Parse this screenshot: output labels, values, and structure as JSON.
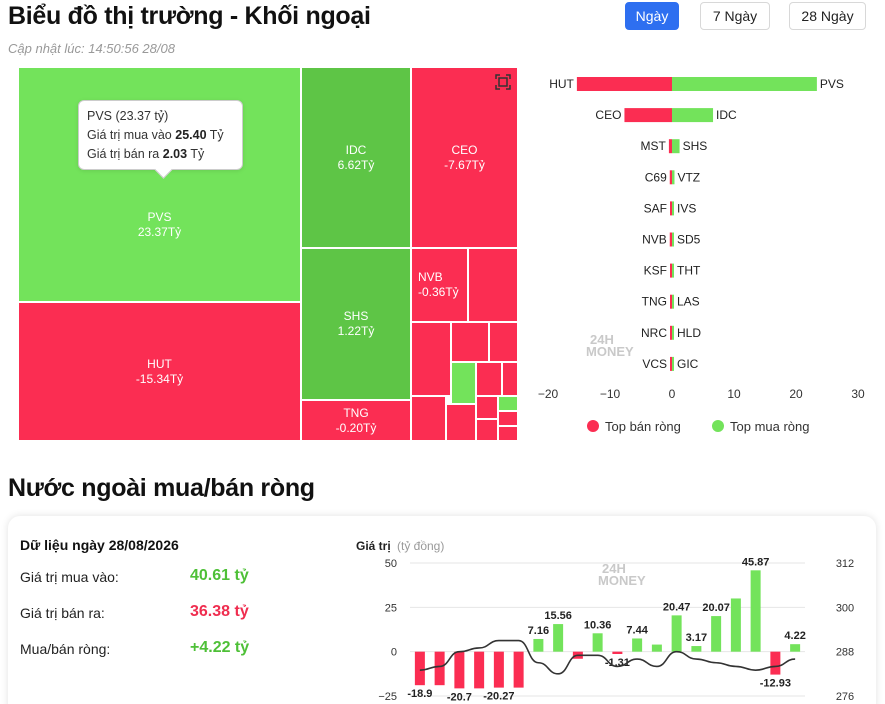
{
  "header": {
    "title": "Biểu đồ thị trường - Khối ngoại",
    "updated": "Cập nhật lúc: 14:50:56 28/08",
    "tabs": [
      {
        "label": "Ngày",
        "active": true
      },
      {
        "label": "7 Ngày",
        "active": false
      },
      {
        "label": "28 Ngày",
        "active": false
      }
    ]
  },
  "treemap": {
    "tiles": [
      {
        "symbol": "PVS",
        "value": "23.37Tỷ",
        "sign": "pos"
      },
      {
        "symbol": "HUT",
        "value": "-15.34Tỷ",
        "sign": "neg"
      },
      {
        "symbol": "IDC",
        "value": "6.62Tỷ",
        "sign": "pos"
      },
      {
        "symbol": "CEO",
        "value": "-7.67Tỷ",
        "sign": "neg"
      },
      {
        "symbol": "SHS",
        "value": "1.22Tỷ",
        "sign": "pos"
      },
      {
        "symbol": "NVB",
        "value": "-0.36Tỷ",
        "sign": "neg"
      },
      {
        "symbol": "TNG",
        "value": "-0.20Tỷ",
        "sign": "neg"
      }
    ],
    "tooltip": {
      "title": "PVS (23.37 tỷ)",
      "buy_label": "Giá trị mua vào",
      "buy_value": "25.40",
      "sell_label": "Giá trị bán ra",
      "sell_value": "2.03",
      "unit": "Tỷ"
    },
    "icon": "expand-icon"
  },
  "colors": {
    "positive": "#73e35b",
    "negative": "#fb2d52",
    "accent": "#2e6ff0"
  },
  "chart_data": [
    {
      "type": "bar",
      "orientation": "horizontal",
      "sell_symbols": [
        "HUT",
        "CEO",
        "MST",
        "C69",
        "SAF",
        "NVB",
        "KSF",
        "TNG",
        "NRC",
        "VCS"
      ],
      "sell_values": [
        -15.34,
        -7.67,
        -0.5,
        -0.36,
        -0.3,
        -0.36,
        -0.25,
        -0.2,
        -0.15,
        -0.1
      ],
      "buy_symbols": [
        "PVS",
        "IDC",
        "SHS",
        "VTZ",
        "IVS",
        "SD5",
        "THT",
        "LAS",
        "HLD",
        "GIC"
      ],
      "buy_values": [
        23.37,
        6.62,
        1.22,
        0.4,
        0.3,
        0.25,
        0.2,
        0.15,
        0.1,
        0.05
      ],
      "xlim": [
        -20,
        30
      ],
      "xticks": [
        "−20",
        "−10",
        "0",
        "10",
        "20",
        "30"
      ],
      "legend": [
        {
          "label": "Top bán ròng",
          "color": "#fb2d52"
        },
        {
          "label": "Top mua ròng",
          "color": "#73e35b"
        }
      ],
      "legend_position": "bottom"
    },
    {
      "type": "bar",
      "values": [
        -18.9,
        -18.9,
        -20.7,
        -20.7,
        -20.27,
        -20.27,
        7.16,
        15.56,
        -4,
        10.36,
        -1.31,
        7.44,
        4,
        20.47,
        3.17,
        20.07,
        30,
        45.87,
        -12.93,
        4.22
      ],
      "labels": [
        "-18.9",
        "",
        "-20.7",
        "",
        "-20.27",
        "",
        "7.16",
        "15.56",
        "",
        "10.36",
        "-1.31",
        "7.44",
        "",
        "20.47",
        "3.17",
        "20.07",
        "",
        "45.87",
        "-12.93",
        "4.22"
      ],
      "line": [
        283,
        284,
        288,
        289,
        291,
        291,
        285,
        282,
        287,
        287,
        284,
        286,
        284,
        288,
        286,
        285,
        284,
        283,
        284,
        286
      ],
      "ylabel": "Giá trị",
      "yunit": "(tỷ đồng)",
      "ylim": [
        -25,
        50
      ],
      "yticks": [
        "50",
        "25",
        "0",
        "−25"
      ],
      "y2ticks": [
        "312",
        "300",
        "288",
        "276"
      ],
      "y2lim": [
        276,
        312
      ]
    }
  ],
  "summary": {
    "date_label": "Dữ liệu ngày 28/08/2026",
    "buy_label": "Giá trị mua vào:",
    "buy_value": "40.61 tỷ",
    "sell_label": "Giá trị bán ra:",
    "sell_value": "36.38 tỷ",
    "net_label": "Mua/bán ròng:",
    "net_value": "+4.22 tỷ"
  },
  "section_title": "Nước ngoài mua/bán ròng",
  "watermark": {
    "line1": "24H",
    "line2": "MONEY"
  }
}
